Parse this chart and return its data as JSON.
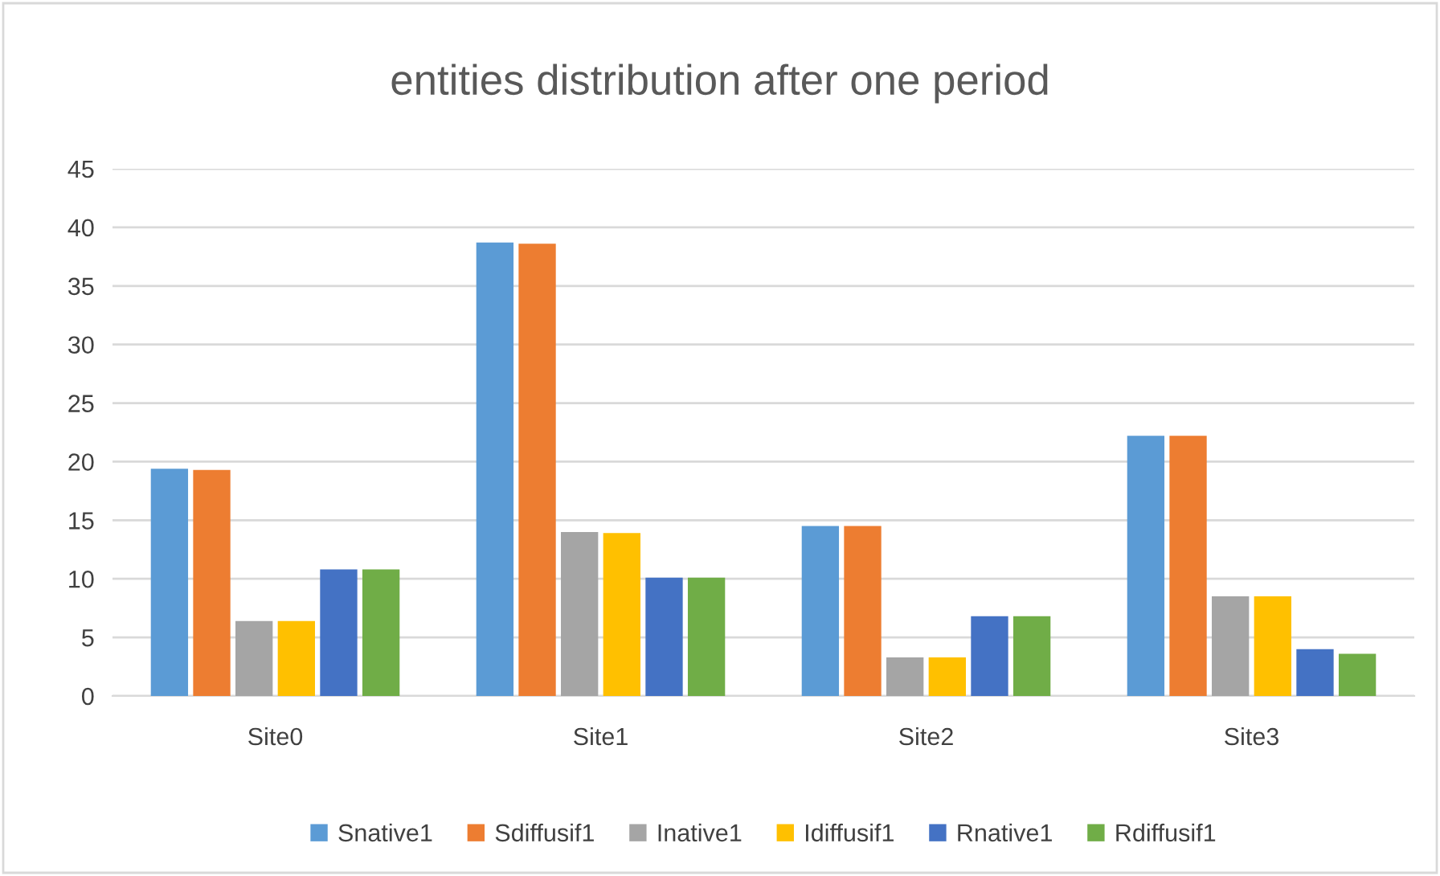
{
  "chart_data": {
    "type": "bar",
    "title": "entities distribution after one period",
    "categories": [
      "Site0",
      "Site1",
      "Site2",
      "Site3"
    ],
    "series": [
      {
        "name": "Snative1",
        "color": "#5b9bd5",
        "values": [
          19.4,
          38.7,
          14.5,
          22.2
        ]
      },
      {
        "name": "Sdiffusif1",
        "color": "#ed7d31",
        "values": [
          19.3,
          38.6,
          14.5,
          22.2
        ]
      },
      {
        "name": "Inative1",
        "color": "#a5a5a5",
        "values": [
          6.4,
          14.0,
          3.3,
          8.5
        ]
      },
      {
        "name": "Idiffusif1",
        "color": "#ffc000",
        "values": [
          6.4,
          13.9,
          3.3,
          8.5
        ]
      },
      {
        "name": "Rnative1",
        "color": "#4472c4",
        "values": [
          10.8,
          10.1,
          6.8,
          4.0
        ]
      },
      {
        "name": "Rdiffusif1",
        "color": "#70ad47",
        "values": [
          10.8,
          10.1,
          6.8,
          3.6
        ]
      }
    ],
    "ylim": [
      0,
      45
    ],
    "yticks": [
      0,
      5,
      10,
      15,
      20,
      25,
      30,
      35,
      40,
      45
    ],
    "grid": "y",
    "legend": "bottom"
  }
}
